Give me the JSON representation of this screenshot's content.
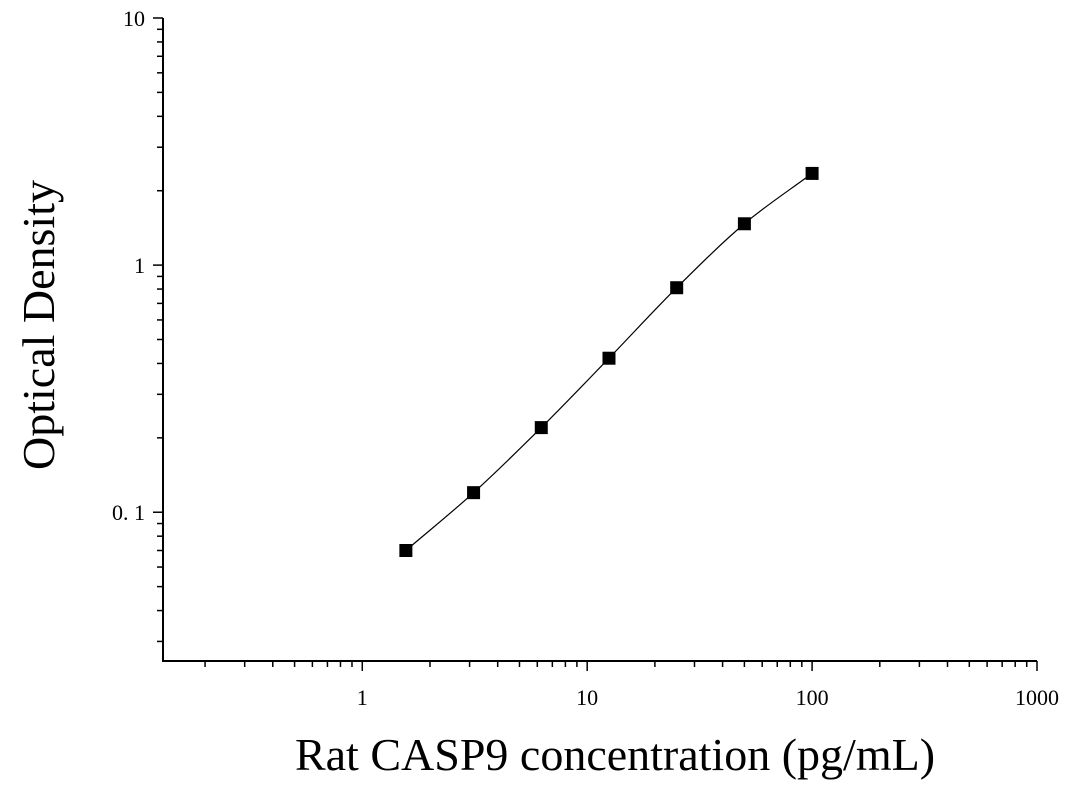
{
  "chart_data": {
    "type": "scatter",
    "title": "",
    "xlabel": "Rat CASP9 concentration (pg/mL)",
    "ylabel": "Optical Density",
    "x_scale": "log",
    "y_scale": "log",
    "xlim": [
      0.13,
      1000
    ],
    "ylim": [
      0.025,
      10
    ],
    "x_ticks": [
      {
        "value": 1,
        "label": "1"
      },
      {
        "value": 10,
        "label": "10"
      },
      {
        "value": 100,
        "label": "100"
      },
      {
        "value": 1000,
        "label": "1000"
      }
    ],
    "y_ticks": [
      {
        "value": 0.1,
        "label": "0. 1"
      },
      {
        "value": 1,
        "label": "1"
      },
      {
        "value": 10,
        "label": "10"
      }
    ],
    "grid": false,
    "legend": "none",
    "series": [
      {
        "marker": "square",
        "color": "#000000",
        "x": [
          1.5625,
          3.125,
          6.25,
          12.5,
          25,
          50,
          100
        ],
        "y": [
          0.07,
          0.12,
          0.22,
          0.42,
          0.81,
          1.47,
          2.35
        ]
      }
    ],
    "fit_curve": {
      "type": "smooth",
      "color": "#000000"
    }
  }
}
